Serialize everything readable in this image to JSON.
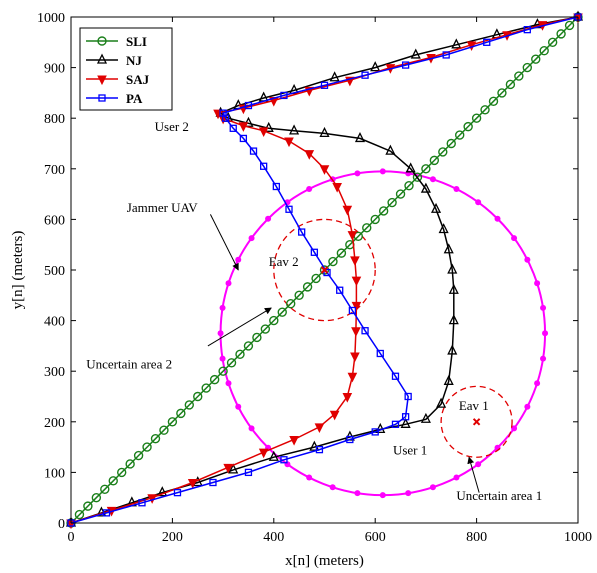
{
  "chart_data": {
    "type": "line",
    "xlabel": "x[n] (meters)",
    "ylabel": "y[n] (meters)",
    "xlim": [
      0,
      1000
    ],
    "ylim": [
      0,
      1000
    ],
    "xticks": [
      "0",
      "200",
      "400",
      "600",
      "800",
      "1000"
    ],
    "yticks": [
      "0",
      "100",
      "200",
      "300",
      "400",
      "500",
      "600",
      "700",
      "800",
      "900",
      "1000"
    ],
    "grid": false,
    "legend_position": "top-left",
    "colors": {
      "SLI": "#1a7f1a",
      "NJ": "#000000",
      "SAJ": "#e00000",
      "PA": "#0000ff",
      "jammer_circle": "#ff00ff",
      "uncertain": "#e00000"
    },
    "series": [
      {
        "name": "SLI",
        "marker": "circle",
        "color": "#1a7f1a",
        "points": [
          [
            0,
            0
          ],
          [
            1000,
            1000
          ]
        ],
        "marker_count": 60
      },
      {
        "name": "NJ",
        "marker": "triangle-up",
        "color": "#000000",
        "points": [
          [
            0,
            0
          ],
          [
            60,
            20
          ],
          [
            120,
            40
          ],
          [
            180,
            60
          ],
          [
            250,
            80
          ],
          [
            320,
            105
          ],
          [
            400,
            130
          ],
          [
            480,
            150
          ],
          [
            550,
            170
          ],
          [
            610,
            185
          ],
          [
            660,
            195
          ],
          [
            700,
            205
          ],
          [
            730,
            235
          ],
          [
            745,
            280
          ],
          [
            752,
            340
          ],
          [
            755,
            400
          ],
          [
            755,
            460
          ],
          [
            752,
            500
          ],
          [
            745,
            540
          ],
          [
            735,
            580
          ],
          [
            720,
            620
          ],
          [
            700,
            660
          ],
          [
            670,
            700
          ],
          [
            630,
            735
          ],
          [
            570,
            760
          ],
          [
            500,
            770
          ],
          [
            440,
            775
          ],
          [
            390,
            780
          ],
          [
            350,
            790
          ],
          [
            310,
            800
          ],
          [
            295,
            810
          ],
          [
            330,
            825
          ],
          [
            380,
            840
          ],
          [
            440,
            855
          ],
          [
            520,
            880
          ],
          [
            600,
            900
          ],
          [
            680,
            925
          ],
          [
            760,
            945
          ],
          [
            840,
            965
          ],
          [
            920,
            985
          ],
          [
            1000,
            1000
          ]
        ]
      },
      {
        "name": "SAJ",
        "marker": "triangle-down",
        "color": "#e00000",
        "points": [
          [
            0,
            0
          ],
          [
            80,
            25
          ],
          [
            160,
            50
          ],
          [
            240,
            80
          ],
          [
            310,
            110
          ],
          [
            380,
            140
          ],
          [
            440,
            165
          ],
          [
            490,
            190
          ],
          [
            520,
            215
          ],
          [
            545,
            250
          ],
          [
            555,
            290
          ],
          [
            560,
            330
          ],
          [
            562,
            380
          ],
          [
            563,
            430
          ],
          [
            563,
            480
          ],
          [
            560,
            520
          ],
          [
            555,
            570
          ],
          [
            545,
            620
          ],
          [
            525,
            665
          ],
          [
            500,
            700
          ],
          [
            470,
            730
          ],
          [
            430,
            755
          ],
          [
            380,
            775
          ],
          [
            340,
            785
          ],
          [
            300,
            800
          ],
          [
            290,
            810
          ],
          [
            340,
            820
          ],
          [
            400,
            835
          ],
          [
            470,
            855
          ],
          [
            550,
            875
          ],
          [
            630,
            900
          ],
          [
            710,
            920
          ],
          [
            790,
            945
          ],
          [
            860,
            965
          ],
          [
            930,
            985
          ],
          [
            1000,
            1000
          ]
        ]
      },
      {
        "name": "PA",
        "marker": "square",
        "color": "#0000ff",
        "points": [
          [
            0,
            0
          ],
          [
            70,
            20
          ],
          [
            140,
            40
          ],
          [
            210,
            60
          ],
          [
            280,
            80
          ],
          [
            350,
            100
          ],
          [
            420,
            125
          ],
          [
            490,
            145
          ],
          [
            550,
            165
          ],
          [
            600,
            180
          ],
          [
            640,
            195
          ],
          [
            660,
            210
          ],
          [
            665,
            250
          ],
          [
            640,
            290
          ],
          [
            610,
            335
          ],
          [
            580,
            380
          ],
          [
            555,
            420
          ],
          [
            530,
            460
          ],
          [
            505,
            495
          ],
          [
            480,
            535
          ],
          [
            455,
            575
          ],
          [
            430,
            620
          ],
          [
            405,
            665
          ],
          [
            380,
            705
          ],
          [
            360,
            735
          ],
          [
            340,
            760
          ],
          [
            320,
            780
          ],
          [
            305,
            800
          ],
          [
            300,
            810
          ],
          [
            350,
            825
          ],
          [
            420,
            845
          ],
          [
            500,
            865
          ],
          [
            580,
            885
          ],
          [
            660,
            905
          ],
          [
            740,
            925
          ],
          [
            820,
            950
          ],
          [
            900,
            975
          ],
          [
            1000,
            1000
          ]
        ]
      }
    ],
    "jammer_circle": {
      "center": [
        615,
        375
      ],
      "radius": 320,
      "marker_count": 40
    },
    "uncertain_areas": [
      {
        "center": [
          500,
          500
        ],
        "radius": 100
      },
      {
        "center": [
          800,
          200
        ],
        "radius": 70
      }
    ],
    "points_of_interest": [
      {
        "name": "Eav 2",
        "x": 500,
        "y": 500
      },
      {
        "name": "Eav 1",
        "x": 800,
        "y": 200
      }
    ],
    "annotations": [
      {
        "text": "User 2",
        "x": 165,
        "y": 775,
        "anchor": "start"
      },
      {
        "text": "Jammer UAV",
        "x": 110,
        "y": 615,
        "anchor": "start"
      },
      {
        "text": "Eav 2",
        "x": 390,
        "y": 508,
        "anchor": "start"
      },
      {
        "text": "Uncertain area 2",
        "x": 30,
        "y": 305,
        "anchor": "start"
      },
      {
        "text": "Eav 1",
        "x": 765,
        "y": 223,
        "anchor": "start"
      },
      {
        "text": "User 1",
        "x": 635,
        "y": 135,
        "anchor": "start"
      },
      {
        "text": "Uncertain area 1",
        "x": 760,
        "y": 45,
        "anchor": "start"
      }
    ],
    "arrows": [
      {
        "from": [
          275,
          610
        ],
        "to": [
          330,
          500
        ]
      },
      {
        "from": [
          270,
          350
        ],
        "to": [
          395,
          425
        ]
      },
      {
        "from": [
          805,
          60
        ],
        "to": [
          785,
          130
        ]
      }
    ]
  }
}
